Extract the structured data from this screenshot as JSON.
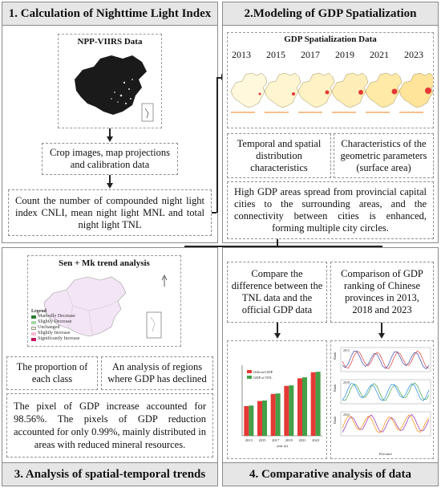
{
  "panels": {
    "p1": {
      "title": "1. Calculation of Nighttime Light Index"
    },
    "p2": {
      "title": "2.Modeling of GDP Spatialization"
    },
    "p3": {
      "title": "3. Analysis of spatial-temporal trends"
    },
    "p4": {
      "title": "4. Comparative analysis of data"
    }
  },
  "p1": {
    "image_title": "NPP-VIIRS Data",
    "box_crop": "Crop images, map projections and calibration data",
    "box_count": "Count the number of compounded night light index CNLI, mean night light MNL and total night light TNL"
  },
  "p2": {
    "image_title": "GDP Spatialization Data",
    "years": [
      "2013",
      "2015",
      "2017",
      "2019",
      "2021",
      "2023"
    ],
    "box_temporal": "Temporal and spatial distribution characteristics",
    "box_geometric": "Characteristics of the geometric parameters (surface area)",
    "box_high_gdp": "High GDP areas spread from provincial capital cities to the surrounding areas, and the connectivity between cities is enhanced, forming multiple city circles."
  },
  "p3": {
    "image_title": "Sen + Mk trend analysis",
    "legend_title": "Legend",
    "legend_items": [
      "Markedly Decrease",
      "Slightly Decrease",
      "Unchanged",
      "Slightly Increase",
      "Significantly Increase"
    ],
    "legend_colors": [
      "#2e7d32",
      "#a5d6a7",
      "#f5f5dc",
      "#f8bbd0",
      "#c2185b"
    ],
    "box_proportion": "The proportion of each class",
    "box_decline": "An analysis of regions where GDP has declined",
    "box_pixel": "The pixel of GDP increase accounted for 98.56%. The pixels of GDP reduction accounted for only 0.99%, mainly distributed in areas with reduced mineral resources."
  },
  "p4": {
    "box_compare_tnl": "Compare the difference between the TNL data and the official GDP data",
    "box_compare_rank": "Comparison of GDP ranking of Chinese provinces in 2013, 2018 and 2023",
    "bar_legend": [
      "Official GDP",
      "GDP of NTL"
    ],
    "bar_colors": [
      "#e53935",
      "#43a047"
    ],
    "line_ylabel": "Rank",
    "line_xlabel": "Province",
    "line_years": [
      "2013",
      "2018",
      "2023"
    ]
  },
  "chart_data": {
    "type": "bar",
    "categories": [
      "2013",
      "2015",
      "2017",
      "2019",
      "2021",
      "2023"
    ],
    "xlabel": "year (a)",
    "series": [
      {
        "name": "Official GDP",
        "values": [
          59,
          69,
          83,
          99,
          114,
          126
        ]
      },
      {
        "name": "GDP of NTL",
        "values": [
          60,
          70,
          84,
          100,
          116,
          127
        ]
      }
    ],
    "ylim": [
      0,
      140
    ]
  }
}
